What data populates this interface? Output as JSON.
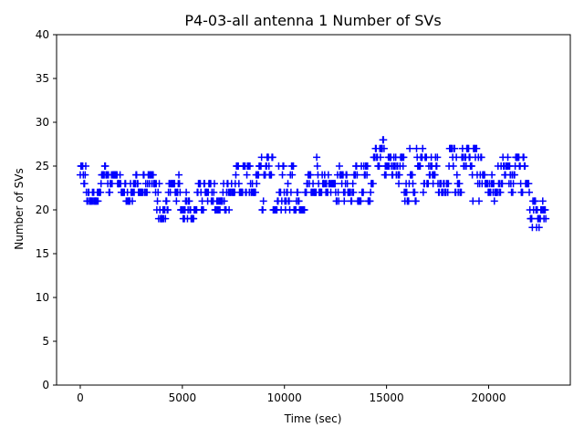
{
  "chart_data": {
    "type": "scatter",
    "title": "P4-03-all antenna 1 Number of SVs",
    "xlabel": "Time (sec)",
    "ylabel": "Number of SVs",
    "xlim": [
      -1160,
      24000
    ],
    "ylim": [
      0,
      40
    ],
    "xticks": [
      0,
      5000,
      10000,
      15000,
      20000
    ],
    "xtick_labels": [
      "0",
      "5000",
      "10000",
      "15000",
      "20000"
    ],
    "yticks": [
      0,
      5,
      10,
      15,
      20,
      25,
      30,
      35,
      40
    ],
    "ytick_labels": [
      "0",
      "5",
      "10",
      "15",
      "20",
      "25",
      "30",
      "35",
      "40"
    ],
    "grid": false,
    "legend": "none",
    "marker": "+",
    "color": "#0000ff",
    "sample_interval_sec": 30,
    "time_range": [
      0,
      22800
    ],
    "series": [
      {
        "values_description_segments": [
          {
            "x": [
              0,
              300
            ],
            "y_range": [
              23,
              25
            ]
          },
          {
            "x": [
              300,
              900
            ],
            "y_range": [
              21,
              22
            ]
          },
          {
            "x": [
              900,
              1300
            ],
            "y_range": [
              22,
              25
            ]
          },
          {
            "x": [
              1300,
              2000
            ],
            "y_range": [
              20,
              24
            ]
          },
          {
            "x": [
              2000,
              2600
            ],
            "y_range": [
              21,
              23
            ]
          },
          {
            "x": [
              2600,
              3600
            ],
            "y_range": [
              22,
              24
            ]
          },
          {
            "x": [
              3600,
              4300
            ],
            "y_range": [
              19,
              23
            ]
          },
          {
            "x": [
              4300,
              4900
            ],
            "y_range": [
              20,
              24
            ]
          },
          {
            "x": [
              4900,
              5600
            ],
            "y_range": [
              19,
              22
            ]
          },
          {
            "x": [
              5600,
              7300
            ],
            "y_range": [
              20,
              23
            ]
          },
          {
            "x": [
              7300,
              8800
            ],
            "y_range": [
              22,
              25
            ]
          },
          {
            "x": [
              8800,
              9800
            ],
            "y_range": [
              20,
              26
            ]
          },
          {
            "x": [
              9800,
              11000
            ],
            "y_range": [
              20,
              25
            ]
          },
          {
            "x": [
              11000,
              12500
            ],
            "y_range": [
              22,
              26
            ]
          },
          {
            "x": [
              12500,
              14200
            ],
            "y_range": [
              21,
              25
            ]
          },
          {
            "x": [
              14200,
              15500
            ],
            "y_range": [
              22,
              28
            ]
          },
          {
            "x": [
              15500,
              16500
            ],
            "y_range": [
              21,
              27
            ]
          },
          {
            "x": [
              16500,
              18500
            ],
            "y_range": [
              22,
              27
            ]
          },
          {
            "x": [
              18500,
              20300
            ],
            "y_range": [
              21,
              27
            ]
          },
          {
            "x": [
              20300,
              21800
            ],
            "y_range": [
              22,
              26
            ]
          },
          {
            "x": [
              21800,
              22800
            ],
            "y_range": [
              18,
              23
            ]
          }
        ]
      }
    ]
  }
}
